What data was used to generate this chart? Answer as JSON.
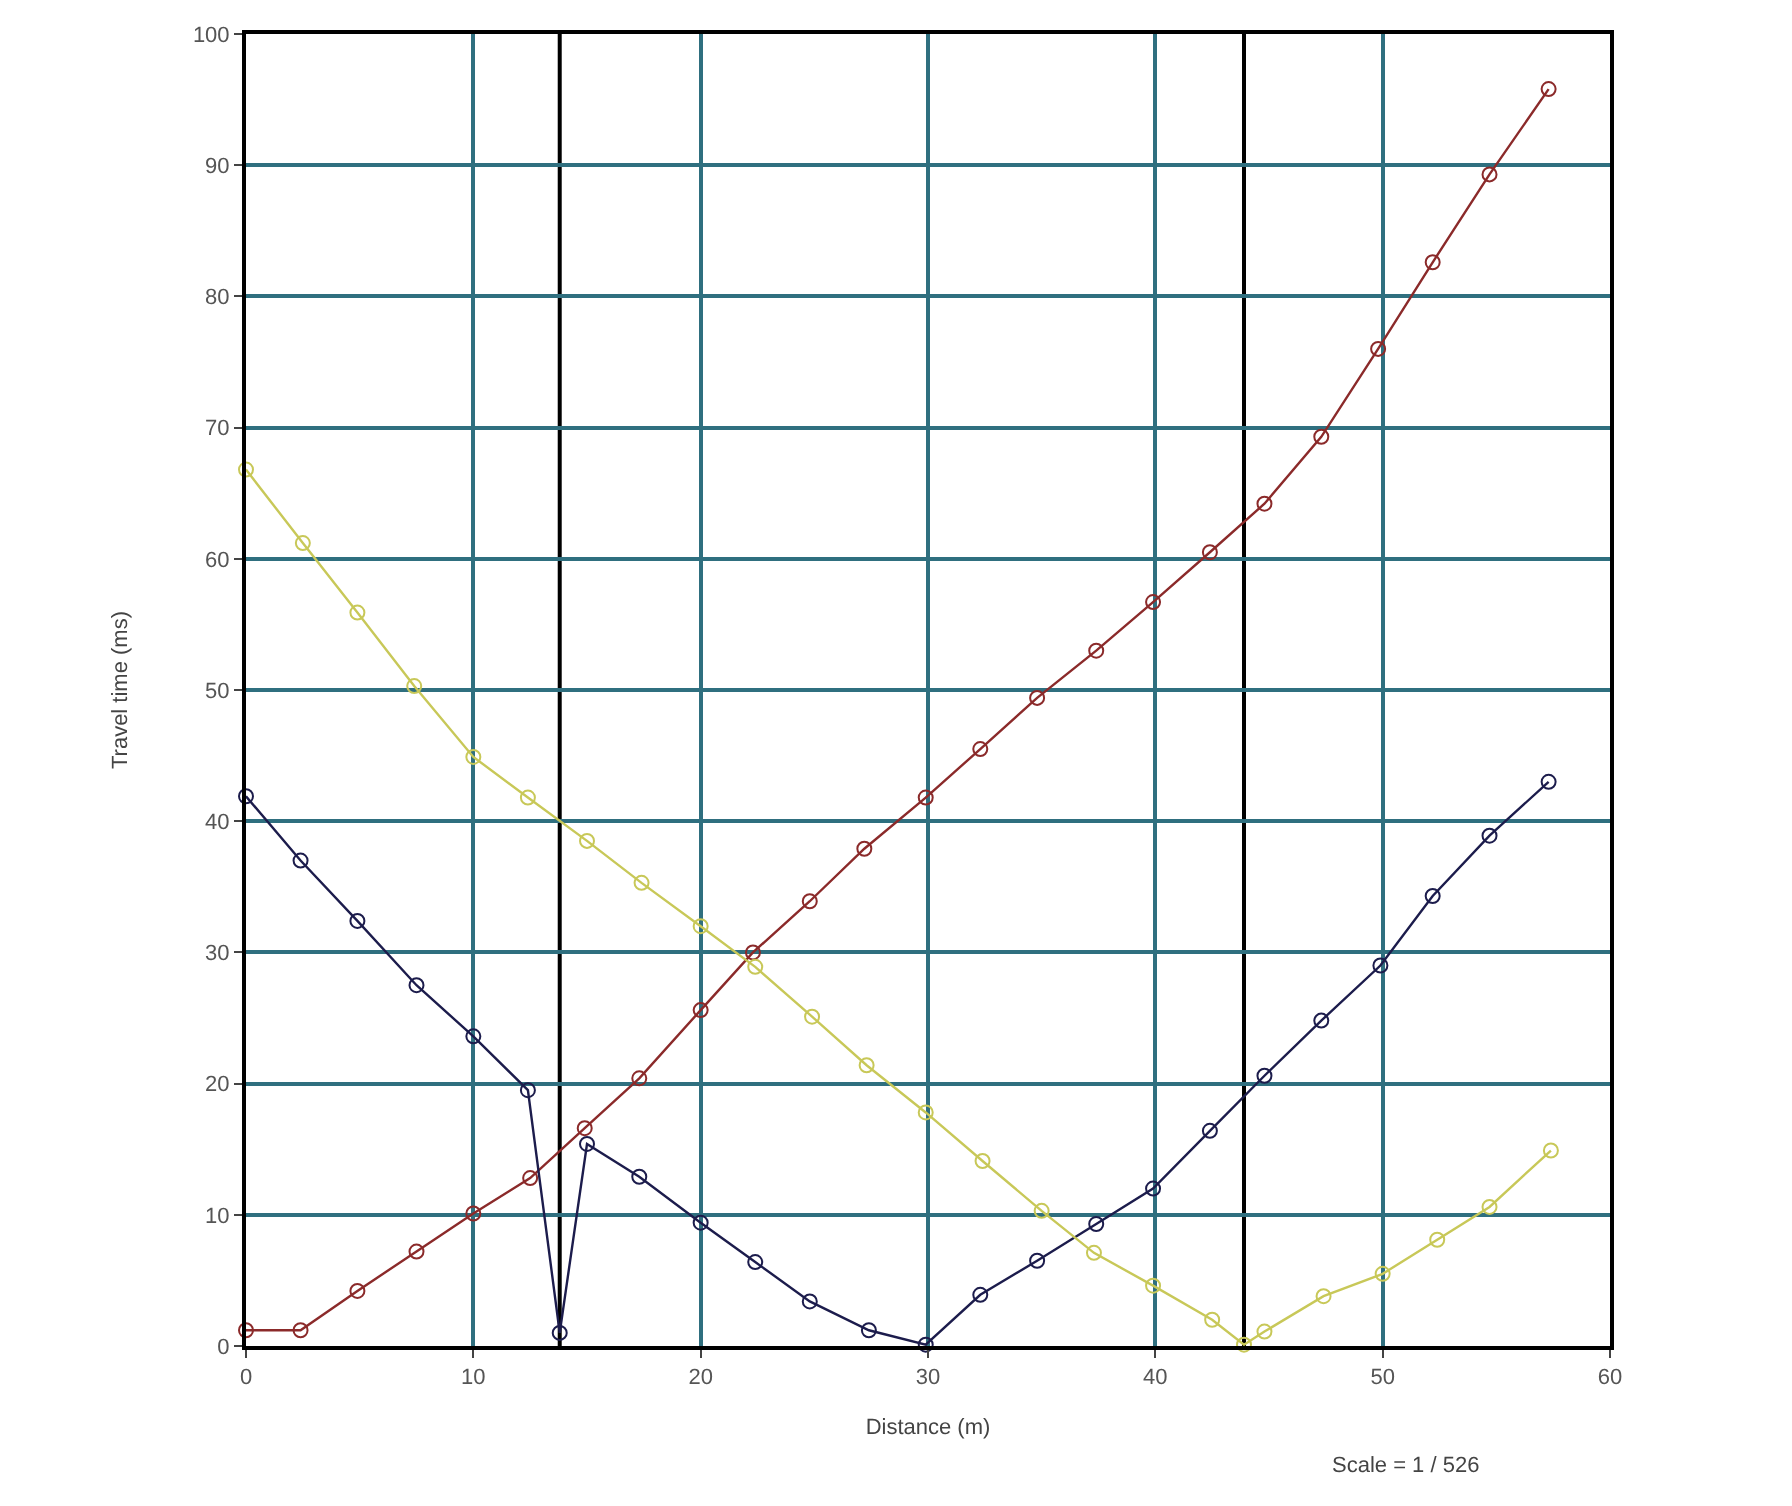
{
  "chart_data": {
    "type": "line",
    "xlabel": "Distance (m)",
    "ylabel": "Travel time (ms)",
    "xlim": [
      0,
      60
    ],
    "xticks": [
      0,
      10,
      20,
      30,
      40,
      50,
      60
    ],
    "ylim": [
      0,
      100
    ],
    "yticks": [
      0,
      10,
      20,
      30,
      40,
      50,
      60,
      70,
      80,
      90,
      100
    ],
    "grid": true,
    "marker": "circle",
    "line_style": "solid",
    "series": [
      {
        "color": "#8b2a2a",
        "x": [
          0,
          2.4,
          4.9,
          7.5,
          10,
          12.5,
          14.9,
          17.3,
          20,
          22.3,
          24.8,
          27.2,
          29.9,
          32.3,
          34.8,
          37.4,
          39.9,
          42.4,
          44.8,
          47.3,
          49.8,
          52.2,
          54.7,
          57.3
        ],
        "values": [
          1.2,
          1.2,
          4.2,
          7.2,
          10.1,
          12.8,
          16.6,
          20.4,
          25.6,
          30,
          33.9,
          37.9,
          41.8,
          45.5,
          49.4,
          53,
          56.7,
          60.5,
          64.2,
          69.3,
          76,
          82.6,
          89.3,
          95.8
        ]
      },
      {
        "color": "#1c1c4c",
        "x": [
          0,
          2.4,
          4.9,
          7.5,
          10,
          12.4,
          13.8,
          15,
          17.3,
          20,
          22.4,
          24.8,
          27.4,
          29.9,
          32.3,
          34.8,
          37.4,
          39.9,
          42.4,
          44.8,
          47.3,
          49.9,
          52.2,
          54.7,
          57.3
        ],
        "values": [
          41.9,
          37,
          32.4,
          27.5,
          23.6,
          19.5,
          1,
          15.4,
          12.9,
          9.4,
          6.4,
          3.4,
          1.2,
          0.1,
          3.9,
          6.5,
          9.3,
          12,
          16.4,
          20.6,
          24.8,
          29,
          34.3,
          38.9,
          43
        ]
      },
      {
        "color": "#c8c858",
        "x": [
          0,
          2.5,
          4.9,
          7.4,
          10,
          12.4,
          15,
          17.4,
          20,
          22.4,
          24.9,
          27.3,
          29.9,
          32.4,
          35,
          37.3,
          39.9,
          42.5,
          43.9,
          44.8,
          47.4,
          50,
          52.4,
          54.7,
          57.4
        ],
        "values": [
          66.8,
          61.2,
          55.9,
          50.3,
          44.9,
          41.8,
          38.5,
          35.3,
          32,
          28.9,
          25.1,
          21.4,
          17.8,
          14.1,
          10.3,
          7.1,
          4.6,
          2,
          0.1,
          1.1,
          3.8,
          5.5,
          8.1,
          10.6,
          14.9
        ]
      }
    ],
    "ref_lines": [
      {
        "axis": "x",
        "value": 13.8,
        "color": "#000000"
      },
      {
        "axis": "x",
        "value": 43.9,
        "color": "#000000"
      }
    ],
    "annotations": [
      "Scale = 1 / 526"
    ]
  }
}
